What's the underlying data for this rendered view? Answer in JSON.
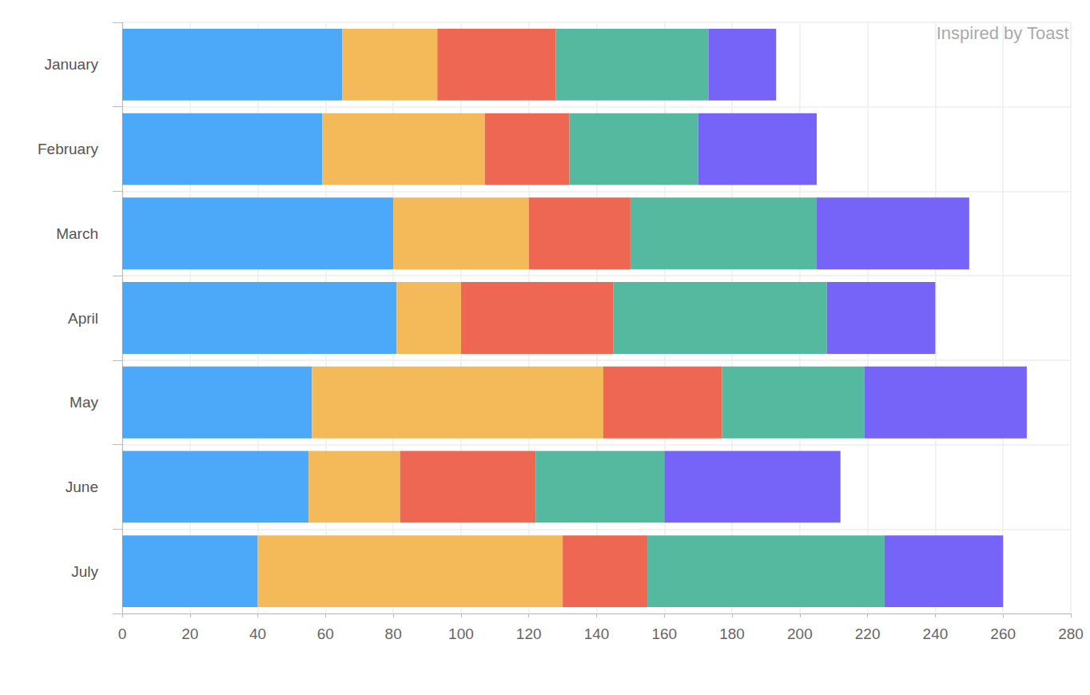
{
  "chart_data": {
    "type": "bar",
    "orientation": "horizontal",
    "stacked": true,
    "grid": true,
    "annotation": "Inspired by Toast",
    "categories": [
      "January",
      "February",
      "March",
      "April",
      "May",
      "June",
      "July"
    ],
    "series": [
      {
        "color": "#4ca8f8",
        "values": [
          65,
          59,
          80,
          81,
          56,
          55,
          40
        ]
      },
      {
        "color": "#f4ba5a",
        "values": [
          28,
          48,
          40,
          19,
          86,
          27,
          90
        ]
      },
      {
        "color": "#ed6752",
        "values": [
          35,
          25,
          30,
          45,
          35,
          40,
          25
        ]
      },
      {
        "color": "#55b9a0",
        "values": [
          45,
          38,
          55,
          63,
          42,
          38,
          70
        ]
      },
      {
        "color": "#7663f8",
        "values": [
          20,
          35,
          45,
          32,
          48,
          52,
          35
        ]
      }
    ],
    "xlim": [
      0,
      280
    ],
    "xticks": [
      0,
      20,
      40,
      60,
      80,
      100,
      120,
      140,
      160,
      180,
      200,
      220,
      240,
      260,
      280
    ]
  }
}
